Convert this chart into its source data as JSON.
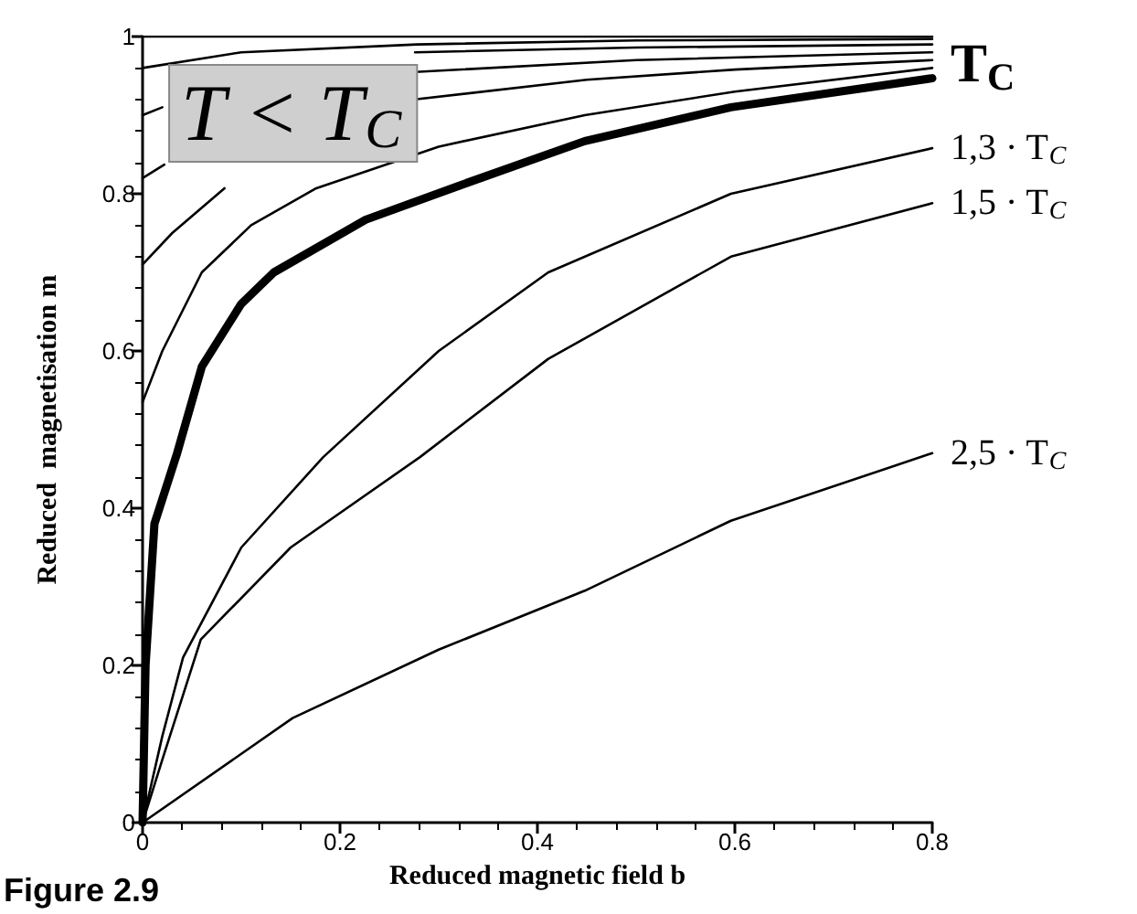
{
  "chart_data": {
    "type": "line",
    "xlabel": "Reduced magnetic field b",
    "ylabel": "Reduced  magnetisation m",
    "xlim": [
      0,
      0.8
    ],
    "xticks": [
      0,
      0.2,
      0.4,
      0.6,
      0.8
    ],
    "ylim": [
      0,
      1
    ],
    "yticks": [
      0,
      0.2,
      0.4,
      0.6,
      0.8,
      1
    ],
    "grid": false,
    "legend": false,
    "marker": "none",
    "line_style": "solid",
    "annotations": [
      "T < T$_{C}$",
      "Figure 2.9"
    ],
    "series": [
      {
        "color": "#000000",
        "x": [
          0,
          0.8
        ],
        "values": [
          1,
          1
        ]
      },
      {
        "color": "#000000",
        "x": [
          0,
          0.1,
          0.278,
          0.5,
          0.8
        ],
        "values": [
          0.96,
          0.98,
          0.99,
          0.995,
          0.997
        ]
      },
      {
        "color": "#000000",
        "x": [
          0,
          0.02,
          0.05,
          0.15,
          0.276,
          0.5,
          0.8
        ],
        "values": [
          0.9,
          0.91,
          null,
          null,
          0.98,
          0.986,
          0.99
        ]
      },
      {
        "color": "#000000",
        "x": [
          0,
          0.022,
          0.1,
          0.276,
          0.5,
          0.8
        ],
        "values": [
          0.82,
          0.837,
          null,
          0.955,
          0.97,
          0.98
        ]
      },
      {
        "color": "#000000",
        "x": [
          0,
          0.03,
          0.083,
          0.17,
          0.276,
          0.45,
          0.6,
          0.8
        ],
        "values": [
          0.71,
          0.75,
          0.807,
          null,
          0.92,
          0.945,
          0.958,
          0.97
        ]
      },
      {
        "color": "#000000",
        "x": [
          0,
          0.02,
          0.06,
          0.11,
          0.176,
          0.3,
          0.448,
          0.6,
          0.8
        ],
        "values": [
          0.535,
          0.6,
          0.7,
          0.76,
          0.807,
          0.86,
          0.9,
          0.93,
          0.96
        ]
      },
      {
        "name": "T$_{C}$",
        "color": "#000000",
        "x": [
          0,
          0.003,
          0.012,
          0.035,
          0.06,
          0.1,
          0.133,
          0.226,
          0.32,
          0.448,
          0.596,
          0.8
        ],
        "values": [
          0,
          0.2,
          0.38,
          0.47,
          0.58,
          0.66,
          0.7,
          0.767,
          0.81,
          0.867,
          0.91,
          0.947
        ]
      },
      {
        "name": "1,3 · T$_{C}$",
        "color": "#000000",
        "x": [
          0,
          0.02,
          0.041,
          0.1,
          0.183,
          0.3,
          0.411,
          0.596,
          0.8
        ],
        "values": [
          0,
          0.11,
          0.21,
          0.35,
          0.465,
          0.6,
          0.7,
          0.8,
          0.858
        ]
      },
      {
        "name": "1,5 · T$_{C}$",
        "color": "#000000",
        "x": [
          0,
          0.02,
          0.059,
          0.15,
          0.281,
          0.411,
          0.596,
          0.8
        ],
        "values": [
          0,
          0.08,
          0.233,
          0.35,
          0.465,
          0.59,
          0.72,
          0.788
        ]
      },
      {
        "name": "2,5 · T$_{C}$",
        "color": "#000000",
        "x": [
          0,
          0.152,
          0.3,
          0.448,
          0.596,
          0.8
        ],
        "values": [
          0,
          0.133,
          0.22,
          0.295,
          0.384,
          0.47
        ]
      }
    ]
  }
}
